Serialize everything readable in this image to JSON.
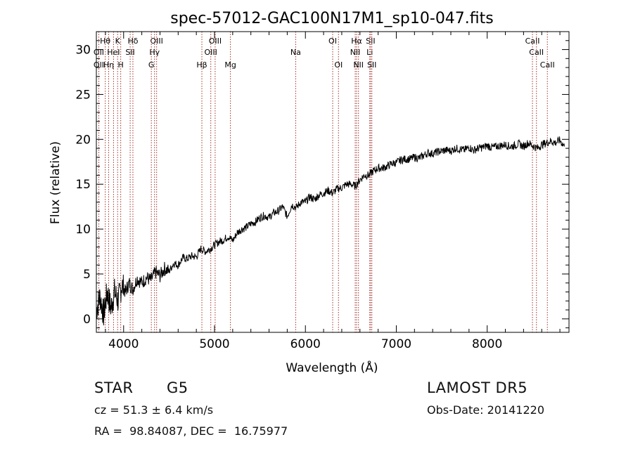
{
  "chart_data": {
    "type": "line",
    "title": "spec-57012-GAC100N17M1_sp10-047.fits",
    "xlabel": "Wavelength (Å)",
    "ylabel": "Flux (relative)",
    "xlim": [
      3700,
      8900
    ],
    "ylim": [
      -1.5,
      32.0
    ],
    "xticks": [
      4000,
      5000,
      6000,
      7000,
      8000
    ],
    "xtick_labels": [
      "4000",
      "5000",
      "6000",
      "7000",
      "8000"
    ],
    "yticks": [
      0,
      5,
      10,
      15,
      20,
      25,
      30
    ],
    "ytick_labels": [
      "0",
      "5",
      "10",
      "15",
      "20",
      "25",
      "30"
    ],
    "grid": false,
    "series": [
      {
        "x": [
          3700,
          3740,
          3780,
          3820,
          3860,
          3900,
          3940,
          3980,
          4020,
          4060,
          4100,
          4150,
          4200,
          4250,
          4300,
          4350,
          4400,
          4450,
          4500,
          4550,
          4600,
          4650,
          4700,
          4750,
          4800,
          4850,
          4900,
          4950,
          5000,
          5050,
          5100,
          5150,
          5200,
          5250,
          5300,
          5350,
          5400,
          5450,
          5500,
          5550,
          5600,
          5650,
          5700,
          5750,
          5800,
          5850,
          5900,
          5950,
          6000,
          6050,
          6100,
          6150,
          6200,
          6250,
          6300,
          6350,
          6400,
          6450,
          6500,
          6550,
          6600,
          6650,
          6700,
          6750,
          6800,
          6850,
          6900,
          6950,
          7000,
          7050,
          7100,
          7150,
          7200,
          7250,
          7300,
          7350,
          7400,
          7450,
          7500,
          7550,
          7600,
          7650,
          7700,
          7750,
          7800,
          7850,
          7900,
          7950,
          8000,
          8050,
          8100,
          8150,
          8200,
          8250,
          8300,
          8350,
          8400,
          8450,
          8500,
          8550,
          8600,
          8650,
          8700,
          8750,
          8800,
          8850
        ],
        "y": [
          1.0,
          2.5,
          0.5,
          3.0,
          1.2,
          3.0,
          2.0,
          3.8,
          3.0,
          4.0,
          3.3,
          4.5,
          4.0,
          4.6,
          4.3,
          5.2,
          4.8,
          5.6,
          5.3,
          6.2,
          6.0,
          6.8,
          6.7,
          7.0,
          6.9,
          7.8,
          7.5,
          7.8,
          8.2,
          8.6,
          8.8,
          9.2,
          8.7,
          9.6,
          10.0,
          10.2,
          10.6,
          10.8,
          11.3,
          11.5,
          11.3,
          11.8,
          12.0,
          12.5,
          11.4,
          12.7,
          12.4,
          13.0,
          13.0,
          13.6,
          13.3,
          13.8,
          14.0,
          14.3,
          14.0,
          14.5,
          14.6,
          15.0,
          15.0,
          14.8,
          15.5,
          16.0,
          16.0,
          16.5,
          16.8,
          16.8,
          17.0,
          17.3,
          17.4,
          17.7,
          17.8,
          17.8,
          18.0,
          17.9,
          18.2,
          18.5,
          18.4,
          18.6,
          18.7,
          18.8,
          18.7,
          19.0,
          18.9,
          18.8,
          19.1,
          18.8,
          19.0,
          19.1,
          19.3,
          19.1,
          19.2,
          19.3,
          19.4,
          19.2,
          19.3,
          19.5,
          19.2,
          19.6,
          19.3,
          19.0,
          19.4,
          19.6,
          19.8,
          19.6,
          19.9,
          19.2
        ]
      }
    ],
    "lines": [
      {
        "label": "Hθ",
        "x": 3798,
        "row": 1
      },
      {
        "label": "OII",
        "x": 3727,
        "row": 2
      },
      {
        "label": "OII",
        "x": 3727,
        "row": 3
      },
      {
        "label": "Hη",
        "x": 3835,
        "row": 3
      },
      {
        "label": "HeI",
        "x": 3889,
        "row": 2
      },
      {
        "label": "K",
        "x": 3934,
        "row": 1
      },
      {
        "label": "H",
        "x": 3968,
        "row": 3
      },
      {
        "label": "Hδ",
        "x": 4102,
        "row": 1
      },
      {
        "label": "SII",
        "x": 4072,
        "row": 2
      },
      {
        "label": "OIII",
        "x": 4363,
        "row": 1
      },
      {
        "label": "Hγ",
        "x": 4340,
        "row": 2
      },
      {
        "label": "G",
        "x": 4305,
        "row": 3
      },
      {
        "label": "OIII",
        "x": 5007,
        "row": 1
      },
      {
        "label": "OIII",
        "x": 4959,
        "row": 2
      },
      {
        "label": "Hβ",
        "x": 4861,
        "row": 3
      },
      {
        "label": "Mg",
        "x": 5175,
        "row": 3
      },
      {
        "label": "Na",
        "x": 5893,
        "row": 2
      },
      {
        "label": "OI",
        "x": 6300,
        "row": 1
      },
      {
        "label": "OI",
        "x": 6364,
        "row": 3
      },
      {
        "label": "Hα",
        "x": 6563,
        "row": 1
      },
      {
        "label": "SII",
        "x": 6717,
        "row": 1
      },
      {
        "label": "NII",
        "x": 6548,
        "row": 2
      },
      {
        "label": "Li",
        "x": 6708,
        "row": 2
      },
      {
        "label": "NII",
        "x": 6584,
        "row": 3
      },
      {
        "label": "SII",
        "x": 6731,
        "row": 3
      },
      {
        "label": "CaII",
        "x": 8498,
        "row": 1
      },
      {
        "label": "CaII",
        "x": 8542,
        "row": 2
      },
      {
        "label": "CaII",
        "x": 8662,
        "row": 3
      }
    ]
  },
  "info": {
    "object_type": "STAR",
    "subclass": "G5",
    "survey": "LAMOST DR5",
    "cz": "cz = 51.3 ± 6.4 km/s",
    "obs_date": "Obs-Date: 20141220",
    "coords": "RA =  98.84087, DEC =  16.75977"
  }
}
